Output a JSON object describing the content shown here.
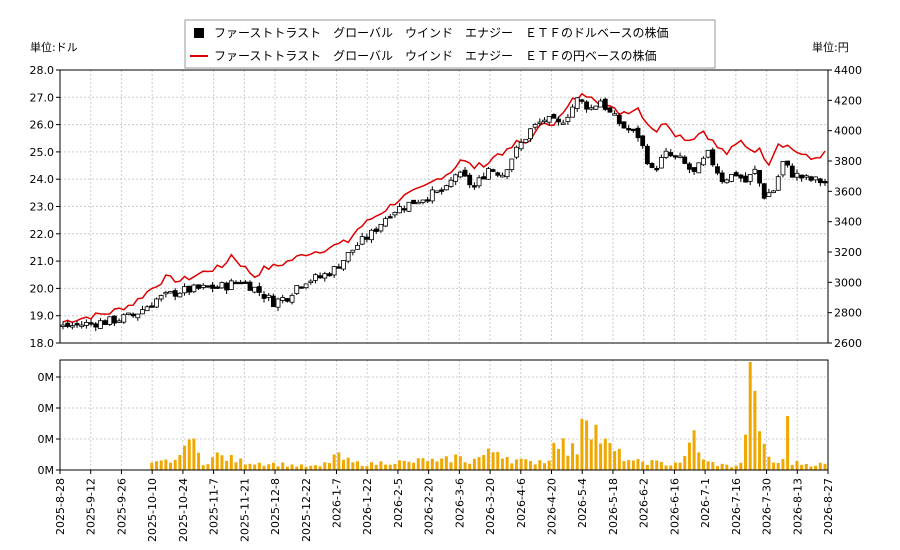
{
  "chart_data": {
    "type": "line",
    "legend": {
      "placement": "top-center",
      "entries": [
        {
          "label": "ファーストトラスト　グローバル　ウインド　エナジー　ＥＴＦのドルベースの株価",
          "color": "#000000",
          "marker": "square"
        },
        {
          "label": "ファーストトラスト　グローバル　ウインド　エナジー　ＥＴＦの円ベースの株価",
          "color": "#dd0000",
          "marker": "line"
        }
      ]
    },
    "left_unit_label": "単位:ドル",
    "right_unit_label": "単位:円",
    "y_left": {
      "min": 18.0,
      "max": 28.0,
      "ticks": [
        "18.0",
        "19.0",
        "20.0",
        "21.0",
        "22.0",
        "23.0",
        "24.0",
        "25.0",
        "26.0",
        "27.0",
        "28.0"
      ]
    },
    "y_right": {
      "min": 2600,
      "max": 4400,
      "ticks": [
        "2600",
        "2800",
        "3000",
        "3200",
        "3400",
        "3600",
        "3800",
        "4000",
        "4200",
        "4400"
      ]
    },
    "volume_axis": {
      "ticks": [
        "0M",
        "0M",
        "0M",
        "0M"
      ]
    },
    "x_ticks": [
      "2025-8-28",
      "2025-9-12",
      "2025-9-26",
      "2025-10-10",
      "2025-10-24",
      "2025-11-7",
      "2025-11-21",
      "2025-12-8",
      "2025-12-22",
      "2026-1-7",
      "2026-1-22",
      "2026-2-5",
      "2026-2-20",
      "2026-3-6",
      "2026-3-20",
      "2026-4-6",
      "2026-4-20",
      "2026-5-4",
      "2026-5-18",
      "2026-6-2",
      "2026-6-16",
      "2026-7-1",
      "2026-7-16",
      "2026-7-30",
      "2026-8-13",
      "2026-8-27"
    ],
    "grid": true,
    "usd_anchors": [
      [
        0,
        18.6
      ],
      [
        5,
        18.7
      ],
      [
        10,
        18.8
      ],
      [
        15,
        19.0
      ],
      [
        20,
        19.6
      ],
      [
        25,
        19.9
      ],
      [
        30,
        20.0
      ],
      [
        35,
        20.1
      ],
      [
        38,
        20.3
      ],
      [
        41,
        20.0
      ],
      [
        45,
        19.5
      ],
      [
        48,
        19.7
      ],
      [
        50,
        20.1
      ],
      [
        52,
        20.3
      ],
      [
        55,
        20.4
      ],
      [
        58,
        20.7
      ],
      [
        63,
        21.6
      ],
      [
        66,
        22.0
      ],
      [
        70,
        22.8
      ],
      [
        74,
        23.1
      ],
      [
        78,
        23.4
      ],
      [
        82,
        23.6
      ],
      [
        84,
        24.2
      ],
      [
        86,
        24.0
      ],
      [
        88,
        23.7
      ],
      [
        91,
        24.4
      ],
      [
        94,
        24.2
      ],
      [
        96,
        24.8
      ],
      [
        98,
        25.3
      ],
      [
        100,
        25.8
      ],
      [
        103,
        26.2
      ],
      [
        106,
        26.0
      ],
      [
        108,
        26.4
      ],
      [
        110,
        26.9
      ],
      [
        113,
        26.6
      ],
      [
        115,
        26.9
      ],
      [
        117,
        26.4
      ],
      [
        120,
        25.9
      ],
      [
        123,
        25.6
      ],
      [
        126,
        24.3
      ],
      [
        129,
        24.9
      ],
      [
        132,
        24.7
      ],
      [
        135,
        24.2
      ],
      [
        138,
        24.9
      ],
      [
        141,
        24.0
      ],
      [
        144,
        24.2
      ],
      [
        146,
        23.9
      ],
      [
        148,
        24.3
      ],
      [
        150,
        23.4
      ],
      [
        152,
        23.6
      ],
      [
        154,
        24.6
      ],
      [
        156,
        24.2
      ],
      [
        159,
        24.0
      ],
      [
        163,
        23.9
      ]
    ],
    "jpy_anchors": [
      [
        0,
        2740
      ],
      [
        5,
        2770
      ],
      [
        10,
        2800
      ],
      [
        15,
        2860
      ],
      [
        19,
        2960
      ],
      [
        22,
        3030
      ],
      [
        25,
        3010
      ],
      [
        28,
        3040
      ],
      [
        31,
        3080
      ],
      [
        34,
        3100
      ],
      [
        36,
        3180
      ],
      [
        38,
        3120
      ],
      [
        41,
        3040
      ],
      [
        43,
        3090
      ],
      [
        46,
        3110
      ],
      [
        49,
        3150
      ],
      [
        52,
        3190
      ],
      [
        55,
        3210
      ],
      [
        58,
        3240
      ],
      [
        61,
        3270
      ],
      [
        63,
        3350
      ],
      [
        66,
        3420
      ],
      [
        69,
        3480
      ],
      [
        72,
        3550
      ],
      [
        74,
        3580
      ],
      [
        77,
        3620
      ],
      [
        79,
        3660
      ],
      [
        81,
        3700
      ],
      [
        83,
        3730
      ],
      [
        85,
        3810
      ],
      [
        88,
        3760
      ],
      [
        91,
        3790
      ],
      [
        93,
        3850
      ],
      [
        95,
        3860
      ],
      [
        97,
        3920
      ],
      [
        99,
        3920
      ],
      [
        101,
        3980
      ],
      [
        103,
        4060
      ],
      [
        105,
        4050
      ],
      [
        107,
        4110
      ],
      [
        109,
        4200
      ],
      [
        111,
        4230
      ],
      [
        113,
        4240
      ],
      [
        115,
        4180
      ],
      [
        117,
        4150
      ],
      [
        119,
        4120
      ],
      [
        121,
        4130
      ],
      [
        123,
        4150
      ],
      [
        125,
        4050
      ],
      [
        127,
        4000
      ],
      [
        129,
        4060
      ],
      [
        131,
        3980
      ],
      [
        134,
        3940
      ],
      [
        137,
        4000
      ],
      [
        140,
        3890
      ],
      [
        142,
        3850
      ],
      [
        145,
        3930
      ],
      [
        147,
        3880
      ],
      [
        149,
        3870
      ],
      [
        151,
        3790
      ],
      [
        153,
        3920
      ],
      [
        155,
        3900
      ],
      [
        157,
        3860
      ],
      [
        160,
        3810
      ],
      [
        163,
        3850
      ]
    ],
    "volume_anchors": [
      [
        0,
        0
      ],
      [
        18,
        0
      ],
      [
        19,
        0.08
      ],
      [
        22,
        0.12
      ],
      [
        25,
        0.15
      ],
      [
        26,
        0.55
      ],
      [
        30,
        0.1
      ],
      [
        33,
        0.2
      ],
      [
        38,
        0.12
      ],
      [
        42,
        0.1
      ],
      [
        47,
        0.08
      ],
      [
        52,
        0.05
      ],
      [
        55,
        0.05
      ],
      [
        57,
        0.12
      ],
      [
        58,
        0.2
      ],
      [
        62,
        0.1
      ],
      [
        66,
        0.08
      ],
      [
        70,
        0.12
      ],
      [
        74,
        0.1
      ],
      [
        78,
        0.15
      ],
      [
        80,
        0.1
      ],
      [
        84,
        0.18
      ],
      [
        87,
        0.12
      ],
      [
        90,
        0.2
      ],
      [
        93,
        0.28
      ],
      [
        96,
        0.15
      ],
      [
        100,
        0.1
      ],
      [
        102,
        0.14
      ],
      [
        104,
        0.12
      ],
      [
        105,
        0.55
      ],
      [
        108,
        0.25
      ],
      [
        110,
        0.3
      ],
      [
        111,
        0.85
      ],
      [
        112,
        0.9
      ],
      [
        113,
        0.7
      ],
      [
        114,
        0.55
      ],
      [
        116,
        0.35
      ],
      [
        118,
        0.25
      ],
      [
        120,
        0.18
      ],
      [
        122,
        0.1
      ],
      [
        124,
        0.12
      ],
      [
        127,
        0.1
      ],
      [
        130,
        0.08
      ],
      [
        133,
        0.15
      ],
      [
        135,
        0.5
      ],
      [
        137,
        0.12
      ],
      [
        140,
        0.08
      ],
      [
        143,
        0.05
      ],
      [
        145,
        0.08
      ],
      [
        146,
        0.6
      ],
      [
        147,
        1.4
      ],
      [
        148,
        1.45
      ],
      [
        149,
        0.4
      ],
      [
        152,
        0.1
      ],
      [
        154,
        0.12
      ],
      [
        155,
        0.75
      ],
      [
        156,
        0.1
      ],
      [
        160,
        0.08
      ],
      [
        163,
        0.08
      ]
    ],
    "volume_max": 1.5
  }
}
